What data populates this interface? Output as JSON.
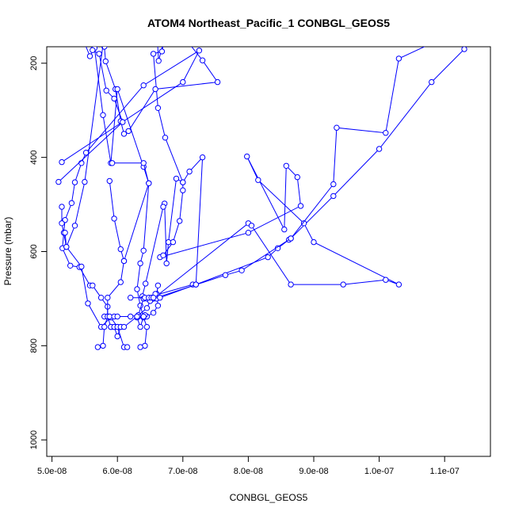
{
  "chart_data": {
    "type": "line",
    "title": "ATOM4 Northeast_Pacific_1 CONBGL_GEOS5",
    "xlabel": "CONBGL_GEOS5",
    "ylabel": "Pressure (mbar)",
    "xlim": [
      4.92e-08,
      1.17e-07
    ],
    "ylim": [
      1035,
      165
    ],
    "y_reversed": true,
    "x_ticks": [
      5e-08,
      6e-08,
      7e-08,
      8e-08,
      9e-08,
      1e-07,
      1.1e-07
    ],
    "x_tick_labels": [
      "5.0e-08",
      "6.0e-08",
      "7.0e-08",
      "8.0e-08",
      "9.0e-08",
      "1.0e-07",
      "1.1e-07"
    ],
    "y_ticks": [
      200,
      400,
      600,
      800,
      1000
    ],
    "y_tick_labels": [
      "200",
      "400",
      "600",
      "800",
      "1000"
    ],
    "color": "#0000ff",
    "marker": "open-circle",
    "series": [
      {
        "points": [
          [
            5.78e-08,
            139
          ],
          [
            5.8e-08,
            165
          ],
          [
            5.82e-08,
            196
          ],
          [
            5.97e-08,
            255
          ],
          [
            6.05e-08,
            323
          ],
          [
            6.1e-08,
            350
          ],
          [
            6.17e-08,
            344
          ],
          [
            6.58e-08,
            255
          ],
          [
            7.53e-08,
            240
          ],
          [
            7.3e-08,
            194
          ],
          [
            7.05e-08,
            150
          ],
          [
            6.6e-08,
            130
          ],
          [
            6.63e-08,
            195
          ],
          [
            6.73e-08,
            140
          ],
          [
            6.68e-08,
            175
          ],
          [
            6.55e-08,
            180
          ],
          [
            6.62e-08,
            295
          ],
          [
            6.73e-08,
            358
          ],
          [
            7e-08,
            453
          ],
          [
            6.9e-08,
            445
          ],
          [
            6.78e-08,
            580
          ],
          [
            6.75e-08,
            625
          ],
          [
            6.72e-08,
            498
          ],
          [
            6.7e-08,
            505
          ],
          [
            6.43e-08,
            668
          ],
          [
            6.38e-08,
            695
          ]
        ]
      },
      {
        "points": [
          [
            5.5e-08,
            158
          ],
          [
            5.58e-08,
            185
          ],
          [
            5.65e-08,
            168
          ],
          [
            5.78e-08,
            310
          ],
          [
            5.9e-08,
            412
          ],
          [
            6e-08,
            255
          ],
          [
            6.4e-08,
            420
          ],
          [
            6.48e-08,
            455
          ],
          [
            6.4e-08,
            598
          ],
          [
            6.35e-08,
            625
          ],
          [
            6.3e-08,
            680
          ],
          [
            6.35e-08,
            715
          ],
          [
            6.4e-08,
            740
          ],
          [
            6.45e-08,
            760
          ],
          [
            6.42e-08,
            800
          ],
          [
            6.35e-08,
            803
          ]
        ]
      },
      {
        "points": [
          [
            5.15e-08,
            410
          ],
          [
            7e-08,
            240
          ],
          [
            7.25e-08,
            173
          ],
          [
            6.4e-08,
            247
          ],
          [
            5.52e-08,
            390
          ],
          [
            5.45e-08,
            412
          ],
          [
            5.35e-08,
            453
          ],
          [
            5.3e-08,
            497
          ],
          [
            5.2e-08,
            533
          ],
          [
            5.18e-08,
            560
          ],
          [
            5.16e-08,
            593
          ],
          [
            5.28e-08,
            630
          ],
          [
            5.42e-08,
            633
          ],
          [
            5.58e-08,
            672
          ],
          [
            5.62e-08,
            672
          ],
          [
            5.75e-08,
            698
          ],
          [
            5.85e-08,
            717
          ],
          [
            5.85e-08,
            738
          ],
          [
            5.9e-08,
            760
          ],
          [
            5.95e-08,
            760
          ],
          [
            6e-08,
            780
          ],
          [
            6.05e-08,
            760
          ]
        ]
      },
      {
        "points": [
          [
            5.1e-08,
            452
          ],
          [
            6.08e-08,
            325
          ],
          [
            5.95e-08,
            275
          ],
          [
            5.83e-08,
            258
          ],
          [
            5.72e-08,
            180
          ],
          [
            5.62e-08,
            172
          ]
        ]
      },
      {
        "points": [
          [
            5.15e-08,
            505
          ],
          [
            5.15e-08,
            540
          ],
          [
            5.22e-08,
            590
          ],
          [
            5.45e-08,
            632
          ],
          [
            5.55e-08,
            710
          ],
          [
            5.75e-08,
            760
          ],
          [
            5.9e-08,
            740
          ],
          [
            6e-08,
            760
          ],
          [
            6.1e-08,
            803
          ],
          [
            6.15e-08,
            803
          ]
        ]
      },
      {
        "points": [
          [
            5.2e-08,
            560
          ],
          [
            5.22e-08,
            590
          ],
          [
            5.35e-08,
            545
          ],
          [
            5.5e-08,
            452
          ],
          [
            5.8e-08,
            140
          ],
          [
            5.9e-08,
            153
          ]
        ]
      },
      {
        "points": [
          [
            5.92e-08,
            412
          ],
          [
            6.4e-08,
            412
          ],
          [
            6.48e-08,
            455
          ],
          [
            6.1e-08,
            620
          ],
          [
            6.05e-08,
            665
          ],
          [
            5.85e-08,
            698
          ],
          [
            5.85e-08,
            738
          ],
          [
            5.8e-08,
            760
          ],
          [
            5.78e-08,
            800
          ],
          [
            5.7e-08,
            803
          ]
        ]
      },
      {
        "points": [
          [
            5.88e-08,
            450
          ],
          [
            5.95e-08,
            530
          ],
          [
            6.05e-08,
            595
          ],
          [
            6.1e-08,
            620
          ]
        ]
      },
      {
        "points": [
          [
            6.4e-08,
            700
          ],
          [
            7.15e-08,
            670
          ],
          [
            7.2e-08,
            670
          ],
          [
            8.3e-08,
            612
          ],
          [
            8.45e-08,
            593
          ],
          [
            8.62e-08,
            575
          ],
          [
            8.65e-08,
            572
          ],
          [
            9.3e-08,
            482
          ],
          [
            1e-07,
            382
          ],
          [
            1.08e-07,
            240
          ],
          [
            1.13e-07,
            170
          ]
        ]
      },
      {
        "points": [
          [
            6.55e-08,
            700
          ],
          [
            8e-08,
            540
          ],
          [
            8.05e-08,
            545
          ],
          [
            8.65e-08,
            670
          ],
          [
            9.45e-08,
            670
          ],
          [
            1.01e-07,
            660
          ],
          [
            1.03e-07,
            670
          ],
          [
            9e-08,
            580
          ],
          [
            8.85e-08,
            540
          ],
          [
            8.15e-08,
            448
          ],
          [
            7.98e-08,
            398
          ],
          [
            8.55e-08,
            553
          ],
          [
            8.58e-08,
            418
          ],
          [
            8.75e-08,
            442
          ],
          [
            8.8e-08,
            503
          ],
          [
            8e-08,
            560
          ],
          [
            6.65e-08,
            612
          ]
        ]
      },
      {
        "points": [
          [
            6.55e-08,
            700
          ],
          [
            7.65e-08,
            650
          ],
          [
            7.9e-08,
            640
          ],
          [
            8.65e-08,
            572
          ],
          [
            9.3e-08,
            457
          ],
          [
            9.35e-08,
            337
          ],
          [
            1.01e-07,
            348
          ],
          [
            1.03e-07,
            190
          ],
          [
            1.1e-07,
            145
          ]
        ]
      },
      {
        "points": [
          [
            6.6e-08,
            695
          ],
          [
            6.62e-08,
            672
          ],
          [
            6.6e-08,
            690
          ],
          [
            6.62e-08,
            715
          ],
          [
            6.55e-08,
            730
          ],
          [
            6.45e-08,
            738
          ],
          [
            6.42e-08,
            735
          ],
          [
            6.4e-08,
            738
          ],
          [
            6.35e-08,
            760
          ],
          [
            6.3e-08,
            740
          ],
          [
            6.32e-08,
            738
          ]
        ]
      },
      {
        "points": [
          [
            5.8e-08,
            738
          ],
          [
            5.85e-08,
            738
          ],
          [
            5.88e-08,
            738
          ],
          [
            5.95e-08,
            738
          ],
          [
            6e-08,
            738
          ],
          [
            6.2e-08,
            738
          ],
          [
            6.32e-08,
            735
          ],
          [
            6.4e-08,
            700
          ],
          [
            6.45e-08,
            700
          ],
          [
            6.5e-08,
            700
          ],
          [
            6.55e-08,
            700
          ],
          [
            6.6e-08,
            700
          ]
        ]
      },
      {
        "points": [
          [
            5.9e-08,
            760
          ],
          [
            5.95e-08,
            760
          ],
          [
            6e-08,
            760
          ],
          [
            6.05e-08,
            760
          ],
          [
            6.1e-08,
            760
          ],
          [
            6.3e-08,
            738
          ],
          [
            6.45e-08,
            720
          ],
          [
            6.5e-08,
            705
          ],
          [
            6.58e-08,
            690
          ]
        ]
      },
      {
        "points": [
          [
            6.2e-08,
            698
          ],
          [
            6.42e-08,
            698
          ],
          [
            6.48e-08,
            698
          ],
          [
            6.52e-08,
            698
          ],
          [
            6.55e-08,
            698
          ],
          [
            6.65e-08,
            698
          ],
          [
            7.2e-08,
            670
          ],
          [
            7.3e-08,
            400
          ],
          [
            7.1e-08,
            430
          ],
          [
            7e-08,
            453
          ],
          [
            7e-08,
            470
          ],
          [
            6.95e-08,
            535
          ],
          [
            6.85e-08,
            580
          ],
          [
            6.7e-08,
            608
          ]
        ]
      }
    ]
  }
}
